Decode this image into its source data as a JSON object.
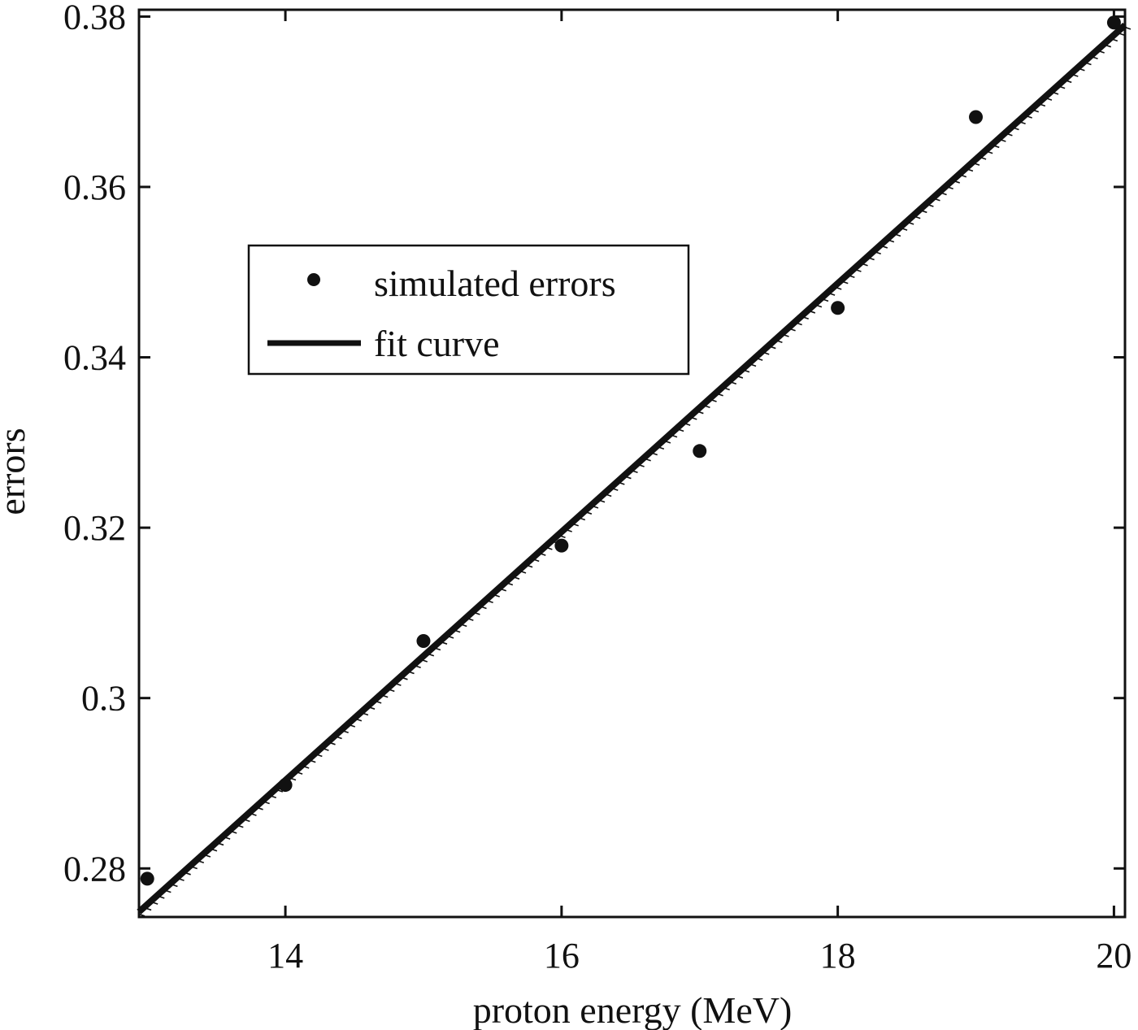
{
  "chart_data": {
    "type": "scatter",
    "title": "",
    "xlabel": "proton energy (MeV)",
    "ylabel": "errors",
    "xlim": [
      12.94,
      20.08
    ],
    "ylim": [
      0.2743,
      0.3808
    ],
    "xticks": [
      14,
      16,
      18,
      20
    ],
    "xtick_labels": [
      "14",
      "16",
      "18",
      "20"
    ],
    "yticks": [
      0.28,
      0.3,
      0.32,
      0.34,
      0.36,
      0.38
    ],
    "ytick_labels": [
      "0.28",
      "0.3",
      "0.32",
      "0.34",
      "0.36",
      "0.38"
    ],
    "grid": false,
    "legend_position": "upper left (inside)",
    "series": [
      {
        "name": "simulated errors",
        "kind": "scatter",
        "marker": "filled-circle",
        "color": "#111111",
        "x": [
          13,
          14,
          15,
          16,
          17,
          18,
          19,
          20
        ],
        "y": [
          0.2788,
          0.2898,
          0.3067,
          0.3179,
          0.329,
          0.3458,
          0.3682,
          0.3793
        ]
      },
      {
        "name": "fit curve",
        "kind": "line",
        "color": "#111111",
        "x": [
          12.94,
          20.08
        ],
        "y": [
          0.2749,
          0.379
        ]
      }
    ]
  },
  "legend": {
    "items": [
      {
        "label": "simulated errors"
      },
      {
        "label": "fit curve"
      }
    ]
  },
  "axes": {
    "xlabel": "proton energy (MeV)",
    "ylabel": "errors"
  }
}
